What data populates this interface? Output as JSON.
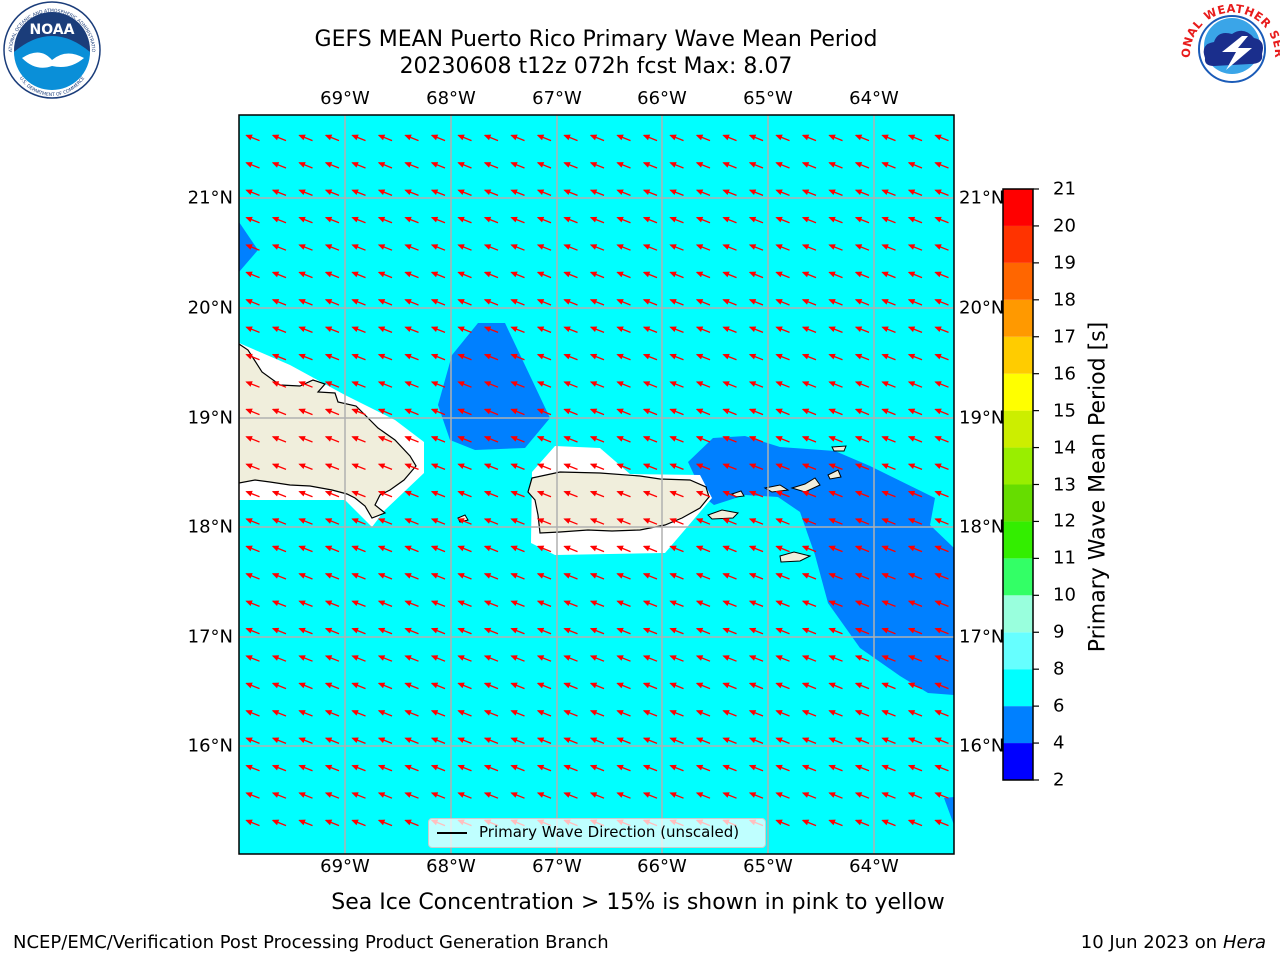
{
  "title": {
    "line1": "GEFS MEAN Puerto Rico Primary Wave Mean Period",
    "line2": "20230608 t12z 072h fcst   Max: 8.07"
  },
  "map": {
    "lon_labels": [
      "69°W",
      "68°W",
      "67°W",
      "66°W",
      "65°W",
      "64°W"
    ],
    "lat_labels": [
      "21°N",
      "20°N",
      "19°N",
      "18°N",
      "17°N",
      "16°N"
    ],
    "legend_label": "Primary Wave Direction (unscaled)",
    "colors": {
      "ocean": "#00ffff",
      "band_4_6": "#0080ff",
      "land": "#f0eedc",
      "arrow": "#ff0000"
    }
  },
  "colorbar": {
    "label": "Primary Wave Mean Period [s]",
    "ticks": [
      "2",
      "4",
      "6",
      "8",
      "9",
      "10",
      "11",
      "12",
      "13",
      "14",
      "15",
      "16",
      "17",
      "18",
      "19",
      "20",
      "21"
    ],
    "colors": [
      "#0000ff",
      "#0080ff",
      "#00ffff",
      "#66ffff",
      "#99ffdd",
      "#33ff66",
      "#33ee00",
      "#66dd00",
      "#99ee00",
      "#ccee00",
      "#ffff00",
      "#ffcc00",
      "#ff9900",
      "#ff6600",
      "#ff3300",
      "#ff0000"
    ]
  },
  "notes": {
    "sea_ice": "Sea Ice Concentration > 15% is shown in pink to yellow",
    "producer": "NCEP/EMC/Verification Post Processing Product Generation Branch",
    "date": "10 Jun 2023 on",
    "host": "Hera"
  },
  "logos": {
    "noaa": "NOAA",
    "noaa_ring_top": "NATIONAL OCEANIC AND ATMOSPHERIC ADMINISTRATION",
    "noaa_ring_bottom": "U.S. DEPARTMENT OF COMMERCE",
    "nws_ring": "NATIONAL WEATHER SERVICE"
  }
}
